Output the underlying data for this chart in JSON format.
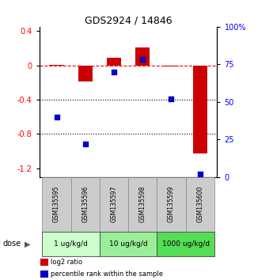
{
  "title": "GDS2924 / 14846",
  "samples": [
    "GSM135595",
    "GSM135596",
    "GSM135597",
    "GSM135598",
    "GSM135599",
    "GSM135600"
  ],
  "log2_ratio": [
    0.005,
    -0.19,
    0.09,
    0.21,
    -0.015,
    -1.03
  ],
  "percentile_rank": [
    40,
    22,
    70,
    78,
    52,
    2
  ],
  "bar_color": "#cc0000",
  "dot_color": "#0000cc",
  "ylim_left": [
    -1.3,
    0.45
  ],
  "ylim_right": [
    0,
    100
  ],
  "yticks_left": [
    0.4,
    0.0,
    -0.4,
    -0.8,
    -1.2
  ],
  "yticks_right": [
    100,
    75,
    50,
    25,
    0
  ],
  "hlines": [
    0.0,
    -0.4,
    -0.8
  ],
  "hline_styles": [
    "dashed",
    "dotted",
    "dotted"
  ],
  "hline_colors": [
    "red",
    "black",
    "black"
  ],
  "bar_width": 0.5,
  "dot_size": 22,
  "group_info": [
    {
      "start": 0,
      "end": 1,
      "label": "1 ug/kg/d",
      "color": "#ccffcc"
    },
    {
      "start": 2,
      "end": 3,
      "label": "10 ug/kg/d",
      "color": "#99ee99"
    },
    {
      "start": 4,
      "end": 5,
      "label": "1000 ug/kg/d",
      "color": "#55dd55"
    }
  ],
  "sample_box_color": "#cccccc",
  "legend_items": [
    {
      "label": "log2 ratio",
      "color": "#cc0000"
    },
    {
      "label": "percentile rank within the sample",
      "color": "#0000cc"
    }
  ]
}
